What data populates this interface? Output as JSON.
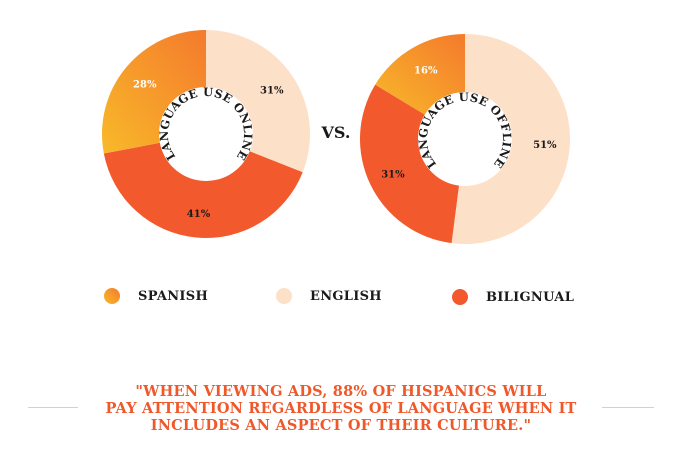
{
  "chart_data": [
    {
      "type": "pie",
      "center_label": "LANGUAGE USE ONLINE",
      "slices": [
        {
          "name": "ENGLISH",
          "value": 31,
          "label": "31%"
        },
        {
          "name": "BILIGNUAL",
          "value": 41,
          "label": "41%"
        },
        {
          "name": "SPANISH",
          "value": 28,
          "label": "28%"
        }
      ]
    },
    {
      "type": "pie",
      "center_label": "LANGUAGE USE OFFLINE",
      "slices": [
        {
          "name": "ENGLISH",
          "value": 51,
          "label": "51%"
        },
        {
          "name": "BILIGNUAL",
          "value": 31,
          "label": "31%"
        },
        {
          "name": "SPANISH",
          "value": 16,
          "label": "16%"
        }
      ]
    }
  ],
  "vs_label": "VS.",
  "legend": [
    {
      "name": "SPANISH",
      "color": "#f8a024"
    },
    {
      "name": "ENGLISH",
      "color": "#fde0c8"
    },
    {
      "name": "BILIGNUAL",
      "color": "#f25a2e"
    }
  ],
  "colors": {
    "SPANISH": "#f8a024",
    "SPANISH_gradient_end": "#f47a2c",
    "ENGLISH": "#fde0c8",
    "BILIGNUAL": "#f25a2e"
  },
  "quote": {
    "line1": "\"WHEN VIEWING ADS, 88% OF HISPANICS WILL",
    "line2": "PAY ATTENTION REGARDLESS OF LANGUAGE WHEN IT",
    "line3": "INCLUDES AN ASPECT OF THEIR CULTURE.\""
  }
}
